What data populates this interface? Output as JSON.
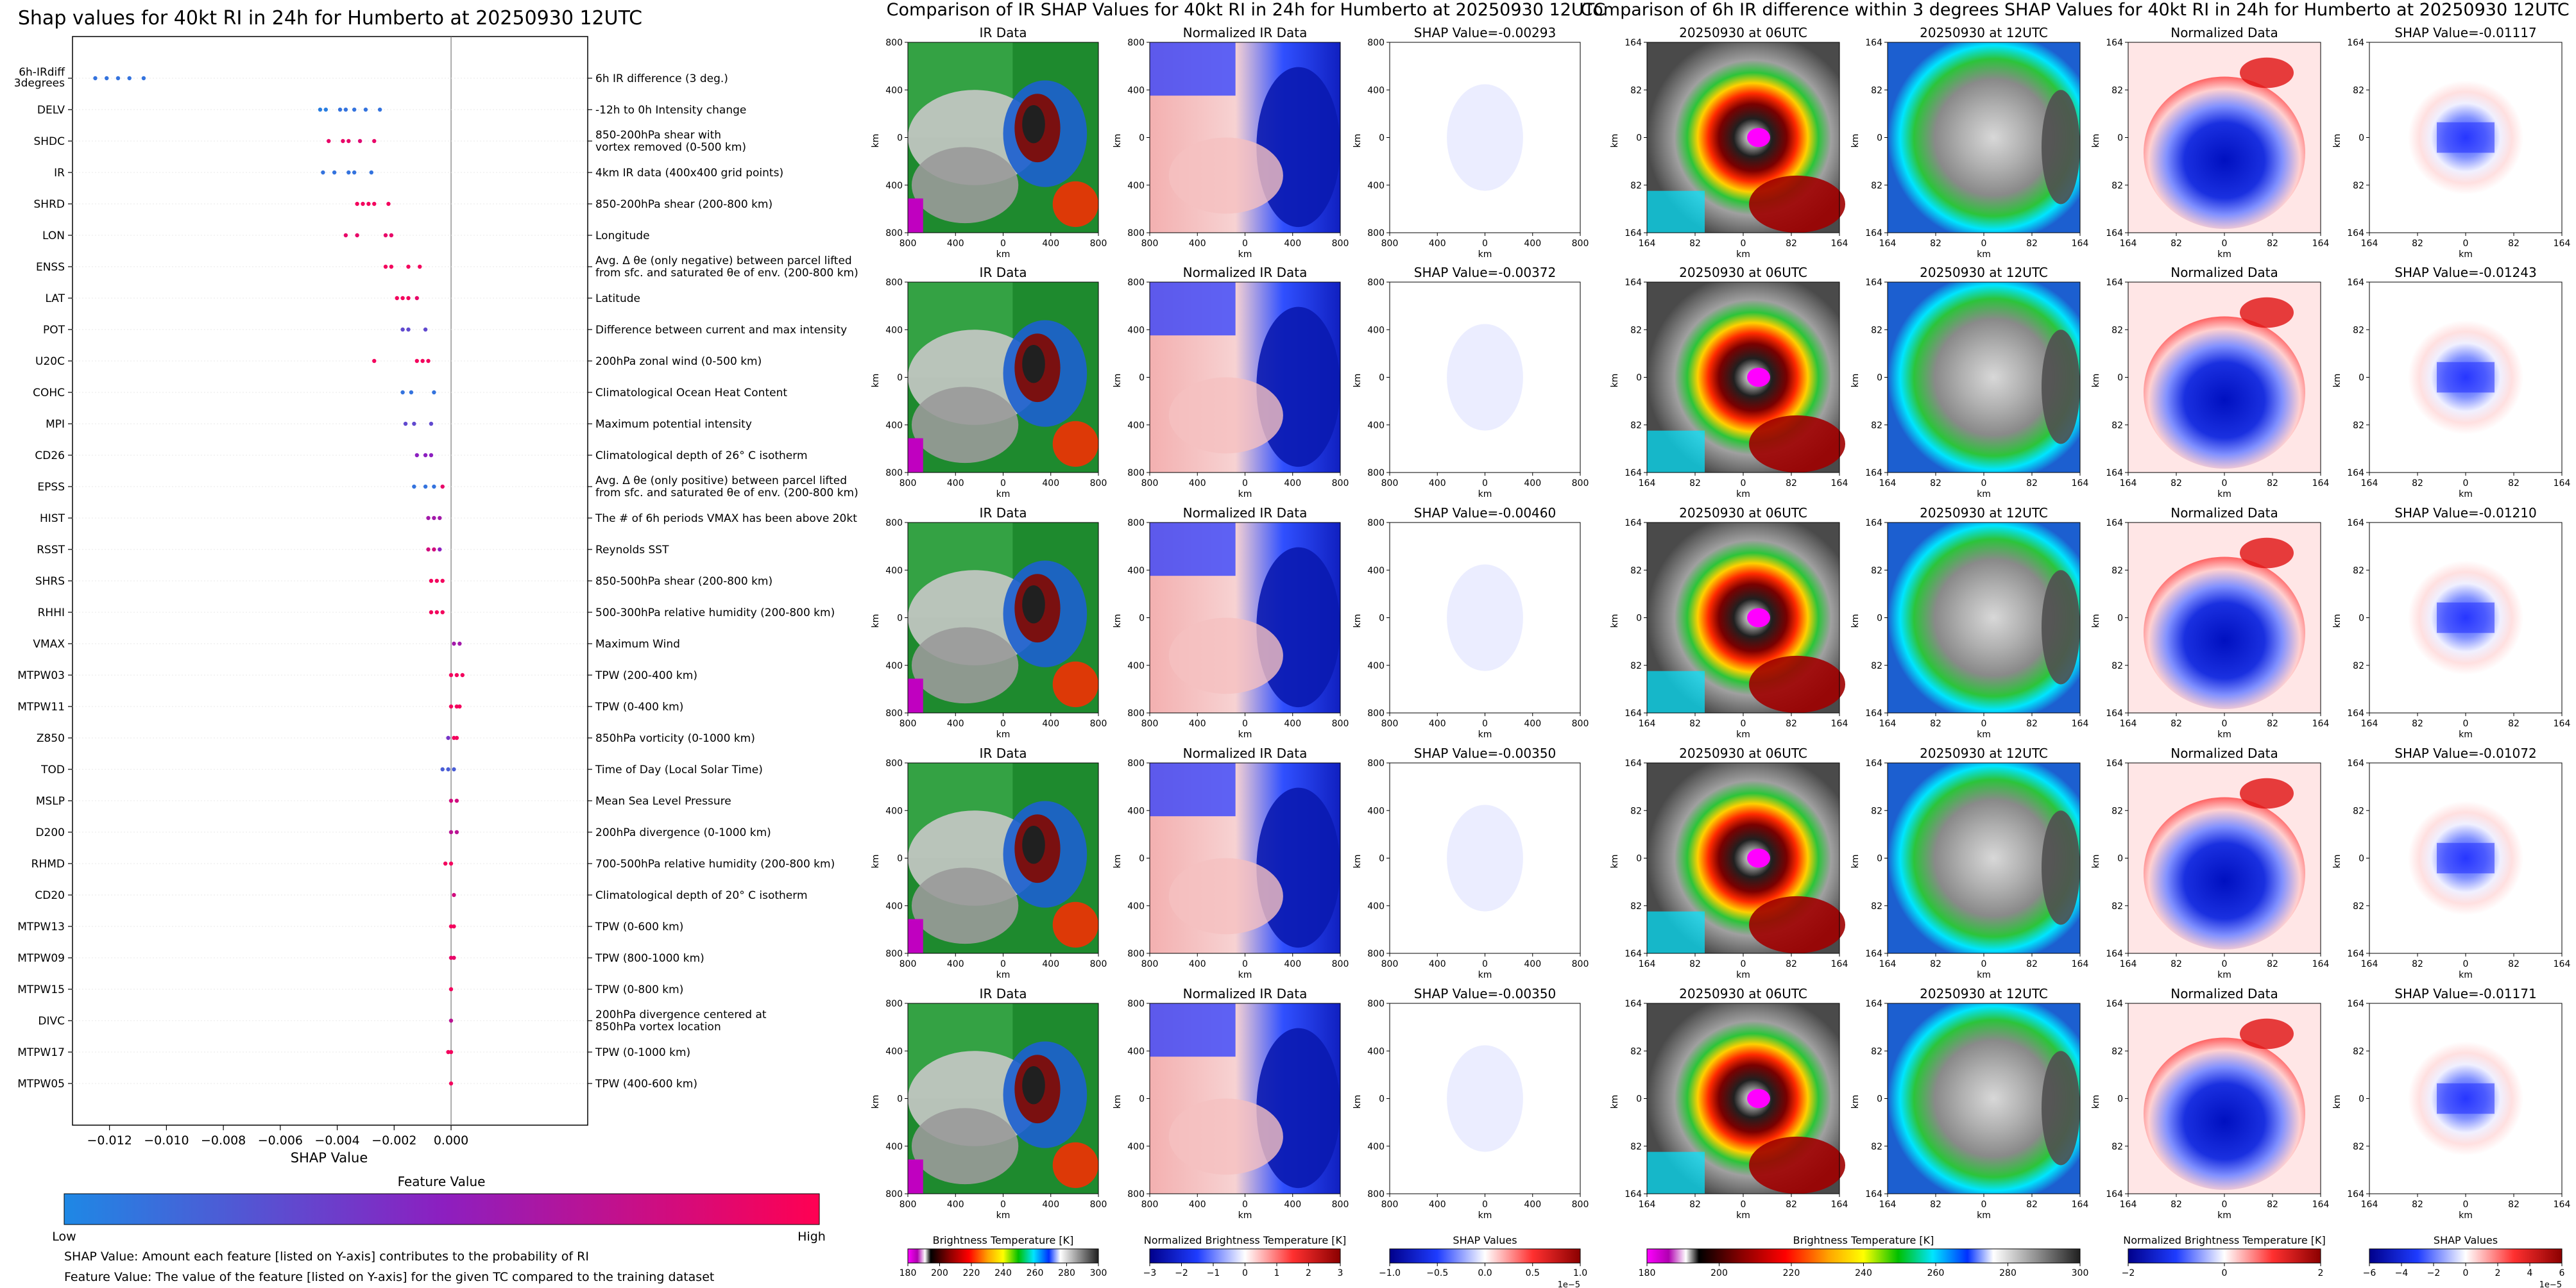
{
  "shap_panel": {
    "title": "Shap values for 40kt RI in 24h for Humberto at 20250930 12UTC",
    "xlabel": "SHAP Value",
    "colorbar_title": "Feature Value",
    "colorbar_low": "Low",
    "colorbar_high": "High",
    "note1": "SHAP Value: Amount each feature [listed on Y-axis] contributes to the probability of RI",
    "note2": "Feature Value: The value of the feature [listed on Y-axis] for the given TC compared to the training dataset"
  },
  "ir_panel": {
    "title": "Comparison of IR SHAP Values for 40kt RI in 24h for Humberto at 20250930 12UTC",
    "col_titles": [
      "IR Data",
      "Normalized IR Data"
    ],
    "shap_titles": [
      "SHAP Value=-0.00293",
      "SHAP Value=-0.00372",
      "SHAP Value=-0.00460",
      "SHAP Value=-0.00350",
      "SHAP Value=-0.00350"
    ],
    "xticks": [
      "800",
      "400",
      "0",
      "400",
      "800"
    ],
    "yticks": [
      "800",
      "400",
      "0",
      "400",
      "800"
    ],
    "axis_unit": "km",
    "cbars": [
      {
        "label": "Brightness Temperature [K]",
        "ticks": [
          "180",
          "200",
          "220",
          "240",
          "260",
          "280",
          "300"
        ],
        "exp": ""
      },
      {
        "label": "Normalized Brightness Temperature [K]",
        "ticks": [
          "−3",
          "−2",
          "−1",
          "0",
          "1",
          "2",
          "3"
        ],
        "exp": ""
      },
      {
        "label": "SHAP Values",
        "ticks": [
          "−1.0",
          "−0.5",
          "0.0",
          "0.5",
          "1.0"
        ],
        "exp": "1e−5"
      }
    ]
  },
  "diff_panel": {
    "title": "Comparison of 6h IR difference within 3 degrees SHAP Values for 40kt RI in 24h for Humberto at 20250930 12UTC",
    "col_titles": [
      "20250930 at 06UTC",
      "20250930 at 12UTC",
      "Normalized Data"
    ],
    "shap_titles": [
      "SHAP Value=-0.01117",
      "SHAP Value=-0.01243",
      "SHAP Value=-0.01210",
      "SHAP Value=-0.01072",
      "SHAP Value=-0.01171"
    ],
    "xticks": [
      "164",
      "82",
      "0",
      "82",
      "164"
    ],
    "yticks": [
      "164",
      "82",
      "0",
      "82",
      "164"
    ],
    "axis_unit": "km",
    "cbars": [
      {
        "label": "Brightness Temperature [K]",
        "ticks": [
          "180",
          "200",
          "220",
          "240",
          "260",
          "280",
          "300"
        ],
        "exp": ""
      },
      {
        "label": "Normalized Brightness Temperature [K]",
        "ticks": [
          "−2",
          "0",
          "2"
        ],
        "exp": ""
      },
      {
        "label": "SHAP Values",
        "ticks": [
          "−6",
          "−4",
          "−2",
          "0",
          "2",
          "4",
          "6"
        ],
        "exp": "1e−5"
      }
    ]
  },
  "chart_data": {
    "type": "scatter",
    "title": "Shap values for 40kt RI in 24h for Humberto at 20250930 12UTC",
    "xlabel": "SHAP Value",
    "xlim": [
      -0.0133,
      0.0048
    ],
    "xticks": [
      -0.012,
      -0.01,
      -0.008,
      -0.006,
      -0.004,
      -0.002,
      0.0
    ],
    "xtick_labels": [
      "−0.012",
      "−0.010",
      "−0.008",
      "−0.006",
      "−0.004",
      "−0.002",
      "0.000"
    ],
    "colors": {
      "low": "#1e88e5",
      "mid": "#8c1fc0",
      "high": "#ff0052"
    },
    "features": [
      {
        "name": "6h-IRdiff\n3degrees",
        "desc": "6h IR difference (3 deg.)",
        "points": [
          [
            -0.0121,
            0.1
          ],
          [
            -0.0117,
            0.1
          ],
          [
            -0.0113,
            0.1
          ],
          [
            -0.0108,
            0.1
          ],
          [
            -0.0125,
            0.1
          ]
        ]
      },
      {
        "name": "DELV",
        "desc": "-12h to 0h Intensity change",
        "points": [
          [
            -0.0046,
            0.05
          ],
          [
            -0.0044,
            0.05
          ],
          [
            -0.0039,
            0.1
          ],
          [
            -0.0037,
            0.1
          ],
          [
            -0.0034,
            0.1
          ],
          [
            -0.003,
            0.1
          ],
          [
            -0.0025,
            0.1
          ]
        ]
      },
      {
        "name": "SHDC",
        "desc": "850-200hPa shear with\nvortex removed (0-500 km)",
        "points": [
          [
            -0.0043,
            0.9
          ],
          [
            -0.0038,
            0.9
          ],
          [
            -0.0036,
            0.9
          ],
          [
            -0.0032,
            0.85
          ],
          [
            -0.0027,
            0.9
          ]
        ]
      },
      {
        "name": "IR",
        "desc": "4km IR data (400x400 grid points)",
        "points": [
          [
            -0.0045,
            0.1
          ],
          [
            -0.0041,
            0.1
          ],
          [
            -0.0036,
            0.1
          ],
          [
            -0.0034,
            0.1
          ],
          [
            -0.0028,
            0.1
          ]
        ]
      },
      {
        "name": "SHRD",
        "desc": "850-200hPa shear (200-800 km)",
        "points": [
          [
            -0.0033,
            0.95
          ],
          [
            -0.0031,
            0.95
          ],
          [
            -0.0029,
            0.95
          ],
          [
            -0.0027,
            0.95
          ],
          [
            -0.0022,
            0.95
          ]
        ]
      },
      {
        "name": "LON",
        "desc": "Longitude",
        "points": [
          [
            -0.0037,
            0.9
          ],
          [
            -0.0033,
            0.9
          ],
          [
            -0.0023,
            0.9
          ],
          [
            -0.0021,
            0.9
          ]
        ]
      },
      {
        "name": "ENSS",
        "desc": "Avg. Δ θe (only negative) between parcel lifted\nfrom sfc. and saturated θe of env. (200-800 km)",
        "points": [
          [
            -0.0023,
            0.95
          ],
          [
            -0.0021,
            0.95
          ],
          [
            -0.0015,
            0.95
          ],
          [
            -0.0011,
            0.95
          ]
        ]
      },
      {
        "name": "LAT",
        "desc": "Latitude",
        "points": [
          [
            -0.0019,
            0.95
          ],
          [
            -0.0017,
            0.95
          ],
          [
            -0.0015,
            0.95
          ],
          [
            -0.0012,
            0.9
          ]
        ]
      },
      {
        "name": "POT",
        "desc": "Difference between current and max intensity",
        "points": [
          [
            -0.0017,
            0.3
          ],
          [
            -0.0015,
            0.3
          ],
          [
            -0.0009,
            0.3
          ]
        ]
      },
      {
        "name": "U20C",
        "desc": "200hPa zonal wind (0-500 km)",
        "points": [
          [
            -0.0027,
            0.95
          ],
          [
            -0.0012,
            0.95
          ],
          [
            -0.001,
            0.95
          ],
          [
            -0.0008,
            0.95
          ]
        ]
      },
      {
        "name": "COHC",
        "desc": "Climatological Ocean Heat Content",
        "points": [
          [
            -0.0017,
            0.1
          ],
          [
            -0.0014,
            0.1
          ],
          [
            -0.0006,
            0.1
          ]
        ]
      },
      {
        "name": "MPI",
        "desc": "Maximum potential intensity",
        "points": [
          [
            -0.0016,
            0.3
          ],
          [
            -0.0013,
            0.3
          ],
          [
            -0.0007,
            0.3
          ]
        ]
      },
      {
        "name": "CD26",
        "desc": "Climatological depth of 26° C isotherm",
        "points": [
          [
            -0.0012,
            0.5
          ],
          [
            -0.0009,
            0.5
          ],
          [
            -0.0007,
            0.5
          ]
        ]
      },
      {
        "name": "EPSS",
        "desc": "Avg. Δ θe (only positive) between parcel lifted\nfrom sfc. and saturated θe of env. (200-800 km)",
        "points": [
          [
            -0.0013,
            0.1
          ],
          [
            -0.0009,
            0.1
          ],
          [
            -0.0006,
            0.1
          ],
          [
            -0.0003,
            0.9
          ]
        ]
      },
      {
        "name": "HIST",
        "desc": "The # of 6h periods VMAX has been above 20kt",
        "points": [
          [
            -0.0008,
            0.6
          ],
          [
            -0.0006,
            0.6
          ],
          [
            -0.0004,
            0.6
          ]
        ]
      },
      {
        "name": "RSST",
        "desc": "Reynolds SST",
        "points": [
          [
            -0.0008,
            0.8
          ],
          [
            -0.0006,
            0.8
          ],
          [
            -0.0004,
            0.5
          ]
        ]
      },
      {
        "name": "SHRS",
        "desc": "850-500hPa shear (200-800 km)",
        "points": [
          [
            -0.0007,
            0.95
          ],
          [
            -0.0005,
            0.95
          ],
          [
            -0.0003,
            0.95
          ]
        ]
      },
      {
        "name": "RHHI",
        "desc": "500-300hPa relative humidity (200-800 km)",
        "points": [
          [
            -0.0007,
            0.95
          ],
          [
            -0.0005,
            0.95
          ],
          [
            -0.0003,
            0.95
          ]
        ]
      },
      {
        "name": "VMAX",
        "desc": "Maximum Wind",
        "points": [
          [
            0.0001,
            0.6
          ],
          [
            0.0003,
            0.6
          ]
        ]
      },
      {
        "name": "MTPW03",
        "desc": "TPW (200-400 km)",
        "points": [
          [
            0.0,
            0.95
          ],
          [
            0.0002,
            0.95
          ],
          [
            0.0004,
            0.95
          ]
        ]
      },
      {
        "name": "MTPW11",
        "desc": "TPW (0-400 km)",
        "points": [
          [
            0.0,
            0.95
          ],
          [
            0.0002,
            0.95
          ],
          [
            0.0003,
            0.95
          ]
        ]
      },
      {
        "name": "Z850",
        "desc": "850hPa vorticity (0-1000 km)",
        "points": [
          [
            -0.0001,
            0.4
          ],
          [
            0.0001,
            0.95
          ],
          [
            0.0002,
            0.95
          ]
        ]
      },
      {
        "name": "TOD",
        "desc": "Time of Day (Local Solar Time)",
        "points": [
          [
            -0.0003,
            0.2
          ],
          [
            -0.0001,
            0.2
          ],
          [
            0.0001,
            0.2
          ]
        ]
      },
      {
        "name": "MSLP",
        "desc": "Mean Sea Level Pressure",
        "points": [
          [
            0.0,
            0.8
          ],
          [
            0.0002,
            0.8
          ]
        ]
      },
      {
        "name": "D200",
        "desc": "200hPa divergence (0-1000 km)",
        "points": [
          [
            0.0,
            0.7
          ],
          [
            0.0002,
            0.7
          ]
        ]
      },
      {
        "name": "RHMD",
        "desc": "700-500hPa relative humidity (200-800 km)",
        "points": [
          [
            -0.0002,
            0.95
          ],
          [
            0.0,
            0.95
          ]
        ]
      },
      {
        "name": "CD20",
        "desc": "Climatological depth of 20° C isotherm",
        "points": [
          [
            0.0001,
            0.8
          ]
        ]
      },
      {
        "name": "MTPW13",
        "desc": "TPW (0-600 km)",
        "points": [
          [
            0.0,
            0.95
          ],
          [
            0.0001,
            0.95
          ]
        ]
      },
      {
        "name": "MTPW09",
        "desc": "TPW (800-1000 km)",
        "points": [
          [
            0.0,
            0.9
          ],
          [
            0.0001,
            0.9
          ]
        ]
      },
      {
        "name": "MTPW15",
        "desc": "TPW (0-800 km)",
        "points": [
          [
            0.0,
            0.95
          ]
        ]
      },
      {
        "name": "DIVC",
        "desc": "200hPa divergence centered at\n850hPa vortex location",
        "points": [
          [
            0.0,
            0.7
          ]
        ]
      },
      {
        "name": "MTPW17",
        "desc": "TPW (0-1000 km)",
        "points": [
          [
            -0.0001,
            0.95
          ],
          [
            0.0,
            0.95
          ]
        ]
      },
      {
        "name": "MTPW05",
        "desc": "TPW (400-600 km)",
        "points": [
          [
            0.0,
            0.95
          ]
        ]
      }
    ]
  }
}
